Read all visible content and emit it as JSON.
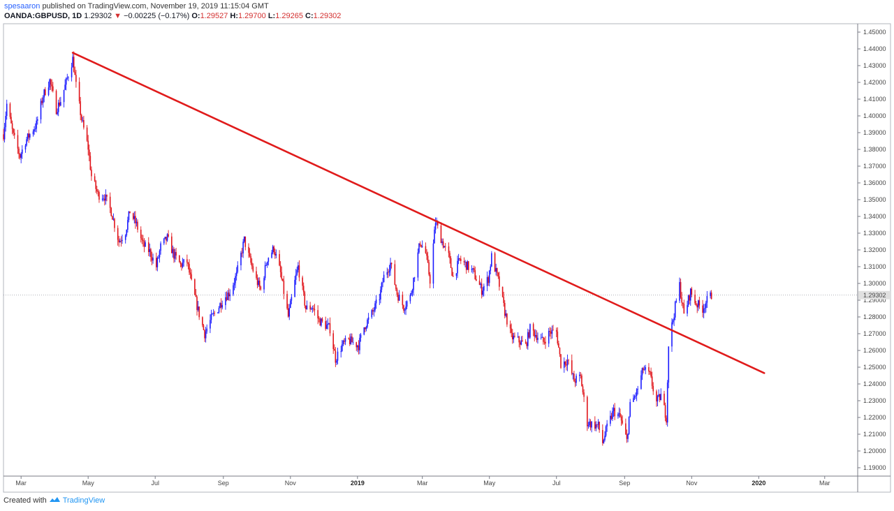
{
  "header": {
    "author": "spesaaron",
    "published_text": "published on TradingView.com, November 19, 2019 11:15:04 GMT",
    "symbol": "OANDA:GBPUSD, 1D",
    "last": "1.29302",
    "change_arrow": "▼",
    "change": "−0.00225 (−0.17%)",
    "o_label": "O:",
    "o": "1.29527",
    "h_label": "H:",
    "h": "1.29700",
    "l_label": "L:",
    "l": "1.29265",
    "c_label": "C:",
    "c": "1.29302"
  },
  "footer": {
    "created_with": "Created with",
    "brand": "TradingView",
    "logo_icon": "tradingview-cloud-icon"
  },
  "colors": {
    "up": "#1a1aff",
    "down": "#e0141a",
    "trendline": "#e01b1b",
    "price_tag": "#e0e0e0",
    "axis": "#787b86"
  },
  "chart_data": {
    "type": "candlestick",
    "symbol": "OANDA:GBPUSD",
    "interval": "1D",
    "x_range": [
      "2018-02-13",
      "2020-03-31"
    ],
    "ylim": [
      1.185,
      1.455
    ],
    "y_ticks": [
      "1.19000",
      "1.20000",
      "1.21000",
      "1.22000",
      "1.23000",
      "1.24000",
      "1.25000",
      "1.26000",
      "1.27000",
      "1.28000",
      "1.29000",
      "1.30000",
      "1.31000",
      "1.32000",
      "1.33000",
      "1.34000",
      "1.35000",
      "1.36000",
      "1.37000",
      "1.38000",
      "1.39000",
      "1.40000",
      "1.41000",
      "1.42000",
      "1.43000",
      "1.44000",
      "1.45000"
    ],
    "x_ticks": [
      {
        "label": "Mar",
        "date": "2018-03-01"
      },
      {
        "label": "May",
        "date": "2018-05-01"
      },
      {
        "label": "Jul",
        "date": "2018-07-01"
      },
      {
        "label": "Sep",
        "date": "2018-09-01"
      },
      {
        "label": "Nov",
        "date": "2018-11-01"
      },
      {
        "label": "2019",
        "date": "2019-01-01",
        "year": true
      },
      {
        "label": "Mar",
        "date": "2019-03-01"
      },
      {
        "label": "May",
        "date": "2019-05-01"
      },
      {
        "label": "Jul",
        "date": "2019-07-01"
      },
      {
        "label": "Sep",
        "date": "2019-09-01"
      },
      {
        "label": "Nov",
        "date": "2019-11-01"
      },
      {
        "label": "2020",
        "date": "2020-01-01",
        "year": true
      },
      {
        "label": "Mar",
        "date": "2020-03-01"
      }
    ],
    "current_price": 1.29302,
    "current_price_label": "1.29302",
    "trendline": {
      "from": {
        "date": "2018-04-17",
        "price": 1.4377
      },
      "to": {
        "date": "2020-01-06",
        "price": 1.2465
      }
    },
    "price_path": [
      {
        "date": "2018-02-13",
        "close": 1.389
      },
      {
        "date": "2018-02-16",
        "close": 1.407
      },
      {
        "date": "2018-02-22",
        "close": 1.388
      },
      {
        "date": "2018-02-28",
        "close": 1.376
      },
      {
        "date": "2018-03-05",
        "close": 1.385
      },
      {
        "date": "2018-03-09",
        "close": 1.389
      },
      {
        "date": "2018-03-15",
        "close": 1.395
      },
      {
        "date": "2018-03-21",
        "close": 1.412
      },
      {
        "date": "2018-03-27",
        "close": 1.421
      },
      {
        "date": "2018-04-02",
        "close": 1.404
      },
      {
        "date": "2018-04-06",
        "close": 1.409
      },
      {
        "date": "2018-04-11",
        "close": 1.42
      },
      {
        "date": "2018-04-17",
        "close": 1.434
      },
      {
        "date": "2018-04-20",
        "close": 1.418
      },
      {
        "date": "2018-04-25",
        "close": 1.398
      },
      {
        "date": "2018-05-01",
        "close": 1.381
      },
      {
        "date": "2018-05-04",
        "close": 1.364
      },
      {
        "date": "2018-05-10",
        "close": 1.353
      },
      {
        "date": "2018-05-16",
        "close": 1.352
      },
      {
        "date": "2018-05-22",
        "close": 1.343
      },
      {
        "date": "2018-05-29",
        "close": 1.325
      },
      {
        "date": "2018-06-04",
        "close": 1.331
      },
      {
        "date": "2018-06-08",
        "close": 1.343
      },
      {
        "date": "2018-06-14",
        "close": 1.335
      },
      {
        "date": "2018-06-20",
        "close": 1.323
      },
      {
        "date": "2018-06-26",
        "close": 1.319
      },
      {
        "date": "2018-07-02",
        "close": 1.31
      },
      {
        "date": "2018-07-06",
        "close": 1.322
      },
      {
        "date": "2018-07-12",
        "close": 1.327
      },
      {
        "date": "2018-07-18",
        "close": 1.317
      },
      {
        "date": "2018-07-24",
        "close": 1.311
      },
      {
        "date": "2018-07-30",
        "close": 1.313
      },
      {
        "date": "2018-08-03",
        "close": 1.3
      },
      {
        "date": "2018-08-09",
        "close": 1.284
      },
      {
        "date": "2018-08-15",
        "close": 1.27
      },
      {
        "date": "2018-08-21",
        "close": 1.279
      },
      {
        "date": "2018-08-27",
        "close": 1.285
      },
      {
        "date": "2018-09-01",
        "close": 1.291
      },
      {
        "date": "2018-09-07",
        "close": 1.295
      },
      {
        "date": "2018-09-13",
        "close": 1.305
      },
      {
        "date": "2018-09-20",
        "close": 1.326
      },
      {
        "date": "2018-09-25",
        "close": 1.314
      },
      {
        "date": "2018-10-01",
        "close": 1.302
      },
      {
        "date": "2018-10-05",
        "close": 1.296
      },
      {
        "date": "2018-10-11",
        "close": 1.315
      },
      {
        "date": "2018-10-17",
        "close": 1.321
      },
      {
        "date": "2018-10-23",
        "close": 1.306
      },
      {
        "date": "2018-10-30",
        "close": 1.28
      },
      {
        "date": "2018-11-05",
        "close": 1.301
      },
      {
        "date": "2018-11-08",
        "close": 1.31
      },
      {
        "date": "2018-11-15",
        "close": 1.285
      },
      {
        "date": "2018-11-21",
        "close": 1.286
      },
      {
        "date": "2018-11-27",
        "close": 1.278
      },
      {
        "date": "2018-12-03",
        "close": 1.275
      },
      {
        "date": "2018-12-07",
        "close": 1.273
      },
      {
        "date": "2018-12-12",
        "close": 1.255
      },
      {
        "date": "2018-12-18",
        "close": 1.263
      },
      {
        "date": "2018-12-24",
        "close": 1.266
      },
      {
        "date": "2019-01-02",
        "close": 1.263
      },
      {
        "date": "2019-01-07",
        "close": 1.274
      },
      {
        "date": "2019-01-15",
        "close": 1.283
      },
      {
        "date": "2019-01-21",
        "close": 1.292
      },
      {
        "date": "2019-01-25",
        "close": 1.304
      },
      {
        "date": "2019-01-31",
        "close": 1.312
      },
      {
        "date": "2019-02-06",
        "close": 1.294
      },
      {
        "date": "2019-02-12",
        "close": 1.286
      },
      {
        "date": "2019-02-18",
        "close": 1.292
      },
      {
        "date": "2019-02-22",
        "close": 1.306
      },
      {
        "date": "2019-02-27",
        "close": 1.325
      },
      {
        "date": "2019-03-04",
        "close": 1.318
      },
      {
        "date": "2019-03-08",
        "close": 1.302
      },
      {
        "date": "2019-03-13",
        "close": 1.337
      },
      {
        "date": "2019-03-19",
        "close": 1.325
      },
      {
        "date": "2019-03-25",
        "close": 1.316
      },
      {
        "date": "2019-03-29",
        "close": 1.304
      },
      {
        "date": "2019-04-04",
        "close": 1.314
      },
      {
        "date": "2019-04-10",
        "close": 1.311
      },
      {
        "date": "2019-04-16",
        "close": 1.307
      },
      {
        "date": "2019-04-24",
        "close": 1.296
      },
      {
        "date": "2019-04-30",
        "close": 1.303
      },
      {
        "date": "2019-05-03",
        "close": 1.316
      },
      {
        "date": "2019-05-09",
        "close": 1.302
      },
      {
        "date": "2019-05-15",
        "close": 1.283
      },
      {
        "date": "2019-05-21",
        "close": 1.268
      },
      {
        "date": "2019-05-27",
        "close": 1.266
      },
      {
        "date": "2019-06-03",
        "close": 1.263
      },
      {
        "date": "2019-06-07",
        "close": 1.273
      },
      {
        "date": "2019-06-13",
        "close": 1.269
      },
      {
        "date": "2019-06-19",
        "close": 1.265
      },
      {
        "date": "2019-06-25",
        "close": 1.271
      },
      {
        "date": "2019-07-01",
        "close": 1.271
      },
      {
        "date": "2019-07-05",
        "close": 1.252
      },
      {
        "date": "2019-07-11",
        "close": 1.254
      },
      {
        "date": "2019-07-17",
        "close": 1.242
      },
      {
        "date": "2019-07-23",
        "close": 1.244
      },
      {
        "date": "2019-07-29",
        "close": 1.217
      },
      {
        "date": "2019-08-02",
        "close": 1.216
      },
      {
        "date": "2019-08-08",
        "close": 1.215
      },
      {
        "date": "2019-08-12",
        "close": 1.205
      },
      {
        "date": "2019-08-16",
        "close": 1.214
      },
      {
        "date": "2019-08-22",
        "close": 1.224
      },
      {
        "date": "2019-08-28",
        "close": 1.22
      },
      {
        "date": "2019-09-03",
        "close": 1.206
      },
      {
        "date": "2019-09-06",
        "close": 1.227
      },
      {
        "date": "2019-09-12",
        "close": 1.235
      },
      {
        "date": "2019-09-18",
        "close": 1.249
      },
      {
        "date": "2019-09-24",
        "close": 1.245
      },
      {
        "date": "2019-09-30",
        "close": 1.229
      },
      {
        "date": "2019-10-04",
        "close": 1.233
      },
      {
        "date": "2019-10-09",
        "close": 1.22
      },
      {
        "date": "2019-10-11",
        "close": 1.264
      },
      {
        "date": "2019-10-17",
        "close": 1.286
      },
      {
        "date": "2019-10-21",
        "close": 1.299
      },
      {
        "date": "2019-10-25",
        "close": 1.281
      },
      {
        "date": "2019-10-31",
        "close": 1.295
      },
      {
        "date": "2019-11-05",
        "close": 1.288
      },
      {
        "date": "2019-11-11",
        "close": 1.285
      },
      {
        "date": "2019-11-14",
        "close": 1.289
      },
      {
        "date": "2019-11-19",
        "close": 1.293
      }
    ]
  }
}
